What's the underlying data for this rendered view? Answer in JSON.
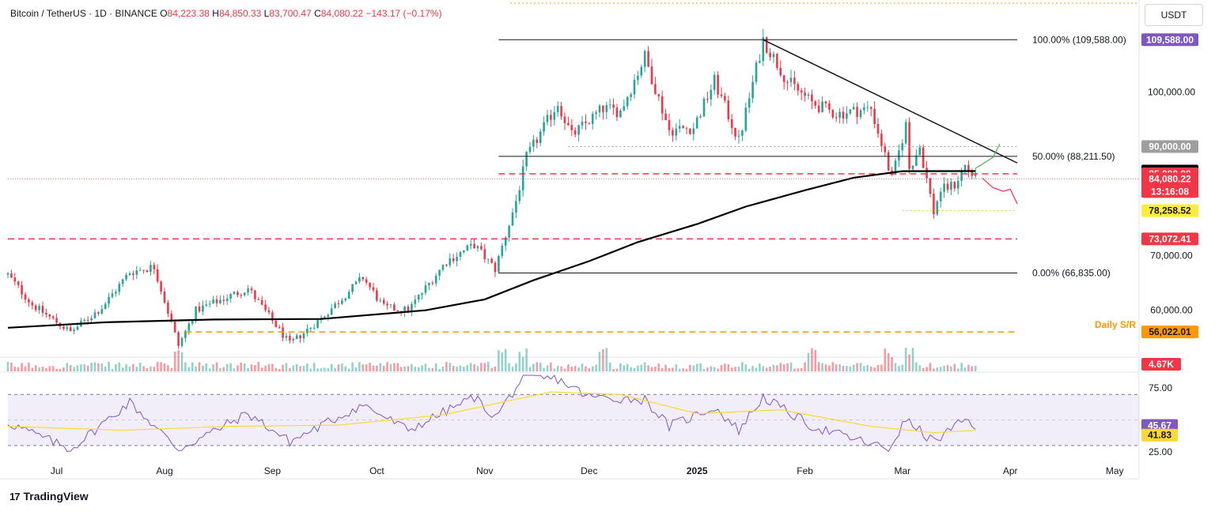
{
  "header": {
    "symbol": "Bitcoin / TetherUS · 1D · BINANCE",
    "o_label": "O",
    "o": "84,223.38",
    "h_label": "H",
    "h": "84,850.33",
    "l_label": "L",
    "l": "83,700.47",
    "c_label": "C",
    "c": "84,080.22",
    "change": "−143.17 (−0.17%)",
    "unit_button": "USDT"
  },
  "brand": {
    "logo": "17",
    "name": "TradingView"
  },
  "colors": {
    "up": "#26a69a",
    "down": "#f23645",
    "level_red": "#f23645",
    "support_orange": "#ff9800",
    "ma": "#000000",
    "rsi": "#7e57c2",
    "rsi_ma": "#fdd835",
    "fib_badge": "#7e57c2"
  },
  "chart_data": {
    "type": "candlestick",
    "price_axis": {
      "ticks": [
        60000,
        70000,
        100000
      ],
      "tick_labels": [
        "60,000.00",
        "70,000.00",
        "100,000.00"
      ],
      "ylim": [
        53000,
        116000
      ]
    },
    "time_axis": {
      "labels": [
        "Jul",
        "Aug",
        "Sep",
        "Oct",
        "Nov",
        "Dec",
        "2025",
        "Feb",
        "Mar",
        "Apr",
        "May"
      ],
      "dates": [
        "2024-07-01",
        "2024-08-01",
        "2024-09-01",
        "2024-10-01",
        "2024-11-01",
        "2024-12-01",
        "2025-01-01",
        "2025-02-01",
        "2025-03-01",
        "2025-04-01",
        "2025-05-01"
      ],
      "range": [
        "2024-06-17",
        "2025-05-08"
      ]
    },
    "price_path": [
      [
        "2024-06-17",
        66500
      ],
      [
        "2024-06-24",
        61000
      ],
      [
        "2024-07-05",
        56000
      ],
      [
        "2024-07-14",
        60500
      ],
      [
        "2024-07-22",
        67000
      ],
      [
        "2024-07-29",
        68000
      ],
      [
        "2024-08-05",
        53500
      ],
      [
        "2024-08-10",
        60000
      ],
      [
        "2024-08-25",
        64000
      ],
      [
        "2024-09-06",
        53800
      ],
      [
        "2024-09-15",
        58500
      ],
      [
        "2024-09-27",
        66000
      ],
      [
        "2024-10-03",
        60500
      ],
      [
        "2024-10-10",
        60000
      ],
      [
        "2024-10-21",
        69000
      ],
      [
        "2024-10-29",
        72000
      ],
      [
        "2024-11-04",
        67500
      ],
      [
        "2024-11-10",
        80000
      ],
      [
        "2024-11-13",
        88000
      ],
      [
        "2024-11-22",
        98000
      ],
      [
        "2024-11-26",
        92000
      ],
      [
        "2024-12-05",
        97000
      ],
      [
        "2024-12-10",
        96500
      ],
      [
        "2024-12-17",
        106500
      ],
      [
        "2024-12-24",
        93000
      ],
      [
        "2024-12-31",
        93500
      ],
      [
        "2025-01-06",
        102000
      ],
      [
        "2025-01-13",
        91000
      ],
      [
        "2025-01-20",
        109588
      ],
      [
        "2025-01-27",
        102000
      ],
      [
        "2025-02-03",
        98000
      ],
      [
        "2025-02-10",
        96000
      ],
      [
        "2025-02-20",
        97000
      ],
      [
        "2025-02-26",
        84000
      ],
      [
        "2025-03-02",
        94000
      ],
      [
        "2025-03-03",
        86000
      ],
      [
        "2025-03-06",
        90000
      ],
      [
        "2025-03-10",
        78000
      ],
      [
        "2025-03-12",
        82000
      ],
      [
        "2025-03-16",
        83000
      ],
      [
        "2025-03-19",
        86500
      ],
      [
        "2025-03-22",
        84080
      ]
    ],
    "ma_200": [
      [
        "2024-06-17",
        56800
      ],
      [
        "2024-07-15",
        57800
      ],
      [
        "2024-08-15",
        58300
      ],
      [
        "2024-09-15",
        58400
      ],
      [
        "2024-10-15",
        60000
      ],
      [
        "2024-11-01",
        62000
      ],
      [
        "2024-11-15",
        65500
      ],
      [
        "2024-12-01",
        69000
      ],
      [
        "2024-12-15",
        72500
      ],
      [
        "2025-01-01",
        75800
      ],
      [
        "2025-01-15",
        79000
      ],
      [
        "2025-02-01",
        82000
      ],
      [
        "2025-02-15",
        84300
      ],
      [
        "2025-03-01",
        85500
      ],
      [
        "2025-03-22",
        85511
      ]
    ],
    "levels": [
      {
        "name": "fib-100",
        "label": "100.00% (109,588.00)",
        "price": 109588,
        "from": "2024-11-05",
        "to": "2025-04-03",
        "style": "solid"
      },
      {
        "name": "fib-50",
        "label": "50.00% (88,211.50)",
        "price": 88211.5,
        "from": "2024-11-05",
        "to": "2025-04-03",
        "style": "solid"
      },
      {
        "name": "fib-0",
        "label": "0.00% (66,835.00)",
        "price": 66835,
        "from": "2024-11-05",
        "to": "2025-04-03",
        "style": "solid"
      },
      {
        "name": "resistance-85000",
        "price": 85000,
        "from": "2024-11-05",
        "to": "2025-04-03",
        "style": "dashed-red"
      },
      {
        "name": "support-73072",
        "price": 73072.41,
        "from": "2024-06-17",
        "to": "2025-04-03",
        "style": "dashed-red"
      },
      {
        "name": "support-56022",
        "label": "Daily S/R",
        "price": 56022.01,
        "from": "2024-08-07",
        "to": "2025-04-03",
        "style": "dashed-orange"
      },
      {
        "name": "low-78258",
        "price": 78258.52,
        "from": "2025-03-01",
        "to": "2025-04-03",
        "style": "dotted-yellow"
      },
      {
        "name": "dotted-90000",
        "price": 90000,
        "from": "2024-11-25",
        "to": "2025-04-03",
        "style": "dotted-gray"
      }
    ],
    "trendline": {
      "from": [
        "2025-01-20",
        109588
      ],
      "to": [
        "2025-04-03",
        87000
      ]
    },
    "scenario_paths": {
      "bullish": [
        [
          "2025-03-22",
          86000
        ],
        [
          "2025-03-25",
          87200
        ],
        [
          "2025-03-27",
          88000
        ],
        [
          "2025-03-29",
          90500
        ]
      ],
      "bearish": [
        [
          "2025-03-24",
          84200
        ],
        [
          "2025-03-27",
          82500
        ],
        [
          "2025-03-30",
          81800
        ],
        [
          "2025-04-01",
          82200
        ],
        [
          "2025-04-03",
          79500
        ]
      ]
    },
    "price_badges": [
      {
        "label": "109,588.00",
        "price": 109588,
        "bg": "#7e57c2",
        "fg": "#ffffff"
      },
      {
        "label": "90,000.00",
        "price": 90000,
        "bg": "#9e9e9e",
        "fg": "#ffffff"
      },
      {
        "label": "85,511.02",
        "price": 85511.02,
        "bg": "#000000",
        "fg": "#ffffff"
      },
      {
        "label": "85,000.00",
        "price": 85000,
        "bg": "#f23645",
        "fg": "#ffffff"
      },
      {
        "label": "84,080.22",
        "price": 84080.22,
        "bg": "#f23645",
        "fg": "#ffffff",
        "sub": "13:16:08"
      },
      {
        "label": "78,258.52",
        "price": 78258.52,
        "bg": "#ffeb3b",
        "fg": "#131722"
      },
      {
        "label": "73,072.41",
        "price": 73072.41,
        "bg": "#f23645",
        "fg": "#ffffff"
      },
      {
        "label": "56,022.01",
        "price": 56022.01,
        "bg": "#ff9800",
        "fg": "#131722"
      }
    ],
    "volume": {
      "last_label": "4.67K",
      "spike_dates": [
        "2024-08-05",
        "2024-11-06",
        "2024-11-12",
        "2024-12-05",
        "2025-02-03",
        "2025-02-25",
        "2025-03-03"
      ]
    },
    "rsi": {
      "ticks": [
        25,
        75
      ],
      "tick_labels": [
        "25.00",
        "75.00"
      ],
      "band": [
        30,
        70
      ],
      "ylim": [
        20,
        85
      ],
      "last_label": "45.67",
      "last": 45.67,
      "ma_label": "41.83",
      "ma_last": 41.83,
      "path": [
        [
          "2024-06-17",
          48
        ],
        [
          "2024-07-05",
          27
        ],
        [
          "2024-07-22",
          64
        ],
        [
          "2024-08-05",
          27
        ],
        [
          "2024-08-25",
          55
        ],
        [
          "2024-09-06",
          33
        ],
        [
          "2024-09-27",
          62
        ],
        [
          "2024-10-10",
          42
        ],
        [
          "2024-10-29",
          68
        ],
        [
          "2024-11-04",
          52
        ],
        [
          "2024-11-12",
          83
        ],
        [
          "2024-11-22",
          82
        ],
        [
          "2024-12-01",
          68
        ],
        [
          "2024-12-17",
          66
        ],
        [
          "2024-12-24",
          45
        ],
        [
          "2025-01-06",
          60
        ],
        [
          "2025-01-13",
          42
        ],
        [
          "2025-01-20",
          68
        ],
        [
          "2025-02-03",
          45
        ],
        [
          "2025-02-25",
          27
        ],
        [
          "2025-03-02",
          50
        ],
        [
          "2025-03-10",
          33
        ],
        [
          "2025-03-19",
          50
        ],
        [
          "2025-03-22",
          45.67
        ]
      ],
      "ma_path": [
        [
          "2024-06-17",
          45
        ],
        [
          "2024-07-20",
          42
        ],
        [
          "2024-08-20",
          45
        ],
        [
          "2024-09-20",
          46
        ],
        [
          "2024-10-20",
          54
        ],
        [
          "2024-11-20",
          72
        ],
        [
          "2024-12-10",
          70
        ],
        [
          "2025-01-01",
          55
        ],
        [
          "2025-01-25",
          58
        ],
        [
          "2025-02-20",
          45
        ],
        [
          "2025-03-10",
          40
        ],
        [
          "2025-03-22",
          41.83
        ]
      ]
    }
  }
}
